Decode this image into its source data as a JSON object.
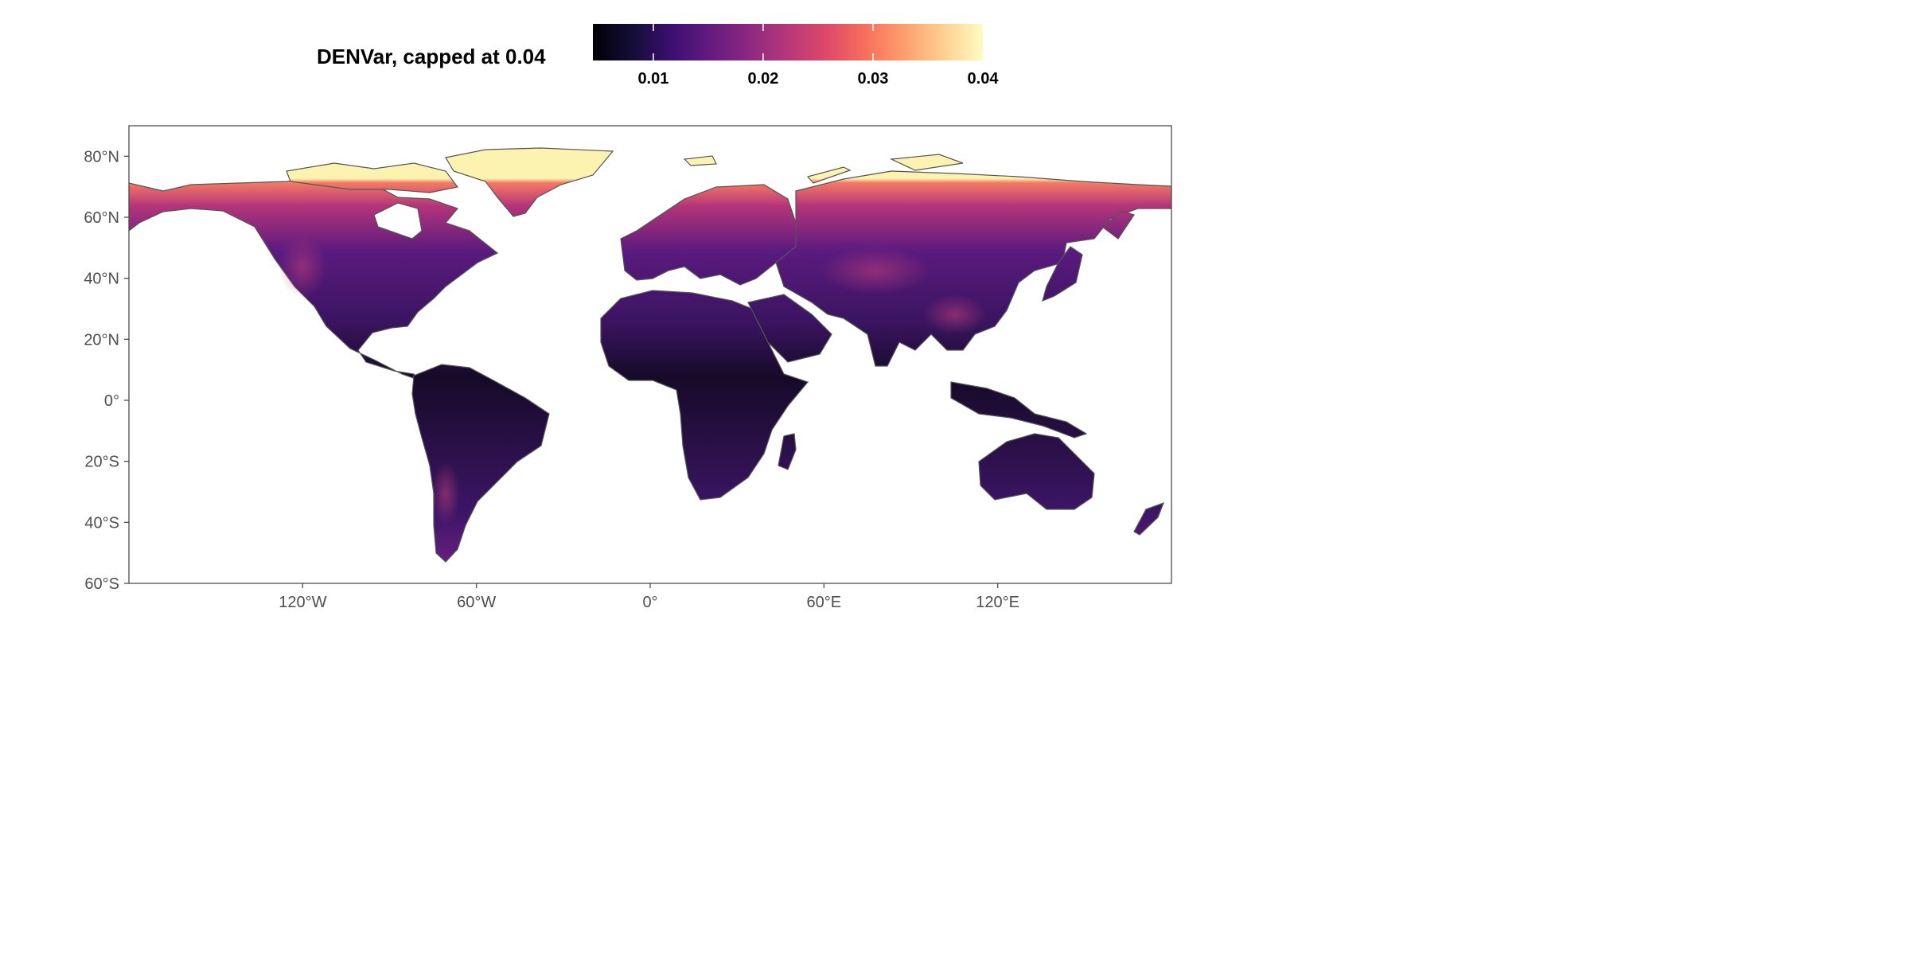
{
  "legend": {
    "title": "DENVar, capped at 0.04",
    "ticks": [
      "0.01",
      "0.02",
      "0.03",
      "0.04"
    ],
    "tick_values": [
      0.01,
      0.02,
      0.03,
      0.04
    ],
    "range": [
      0.0045,
      0.04
    ],
    "palette": [
      "#000004",
      "#140E36",
      "#3B0F70",
      "#641A80",
      "#8C2981",
      "#B73779",
      "#DE4968",
      "#F7705C",
      "#FE9F6D",
      "#FECF92",
      "#FCFDBF"
    ]
  },
  "map": {
    "projection": "equirectangular",
    "lon_range": [
      -180,
      180
    ],
    "lat_range": [
      -60,
      90
    ],
    "lat_ticks": [
      {
        "value": 80,
        "label": "80°N"
      },
      {
        "value": 60,
        "label": "60°N"
      },
      {
        "value": 40,
        "label": "40°N"
      },
      {
        "value": 20,
        "label": "20°N"
      },
      {
        "value": 0,
        "label": "0°"
      },
      {
        "value": -20,
        "label": "20°S"
      },
      {
        "value": -40,
        "label": "40°S"
      },
      {
        "value": -60,
        "label": "60°S"
      }
    ],
    "lon_ticks": [
      {
        "value": -120,
        "label": "120°W"
      },
      {
        "value": -60,
        "label": "60°W"
      },
      {
        "value": 0,
        "label": "0°"
      },
      {
        "value": 60,
        "label": "60°E"
      },
      {
        "value": 120,
        "label": "120°E"
      }
    ],
    "colors": {
      "border": "#4d4d4d",
      "coastline": "#555555",
      "low": "#1a0b2e",
      "mid": "#4a1670",
      "high": "#d8456b",
      "cap": "#fcf3b0"
    }
  }
}
